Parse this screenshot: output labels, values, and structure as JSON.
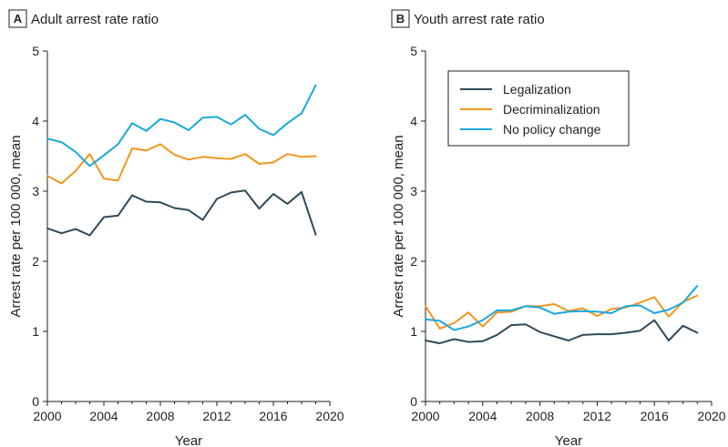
{
  "chart_data": [
    {
      "type": "line",
      "panel": "A",
      "title": "Adult arrest rate ratio",
      "xlabel": "Year",
      "ylabel": "Arrest rate per 100 000, mean",
      "xlim": [
        2000,
        2020
      ],
      "ylim": [
        0,
        5
      ],
      "xticks": [
        2000,
        2004,
        2008,
        2012,
        2016,
        2020
      ],
      "yticks": [
        0,
        1,
        2,
        3,
        4,
        5
      ],
      "x": [
        2000,
        2001,
        2002,
        2003,
        2004,
        2005,
        2006,
        2007,
        2008,
        2009,
        2010,
        2011,
        2012,
        2013,
        2014,
        2015,
        2016,
        2017,
        2018,
        2019
      ],
      "series": [
        {
          "name": "Legalization",
          "color": "#2e4a5b",
          "values": [
            2.47,
            2.4,
            2.46,
            2.37,
            2.63,
            2.65,
            2.94,
            2.85,
            2.84,
            2.76,
            2.73,
            2.59,
            2.89,
            2.98,
            3.01,
            2.75,
            2.96,
            2.82,
            2.99,
            2.38
          ]
        },
        {
          "name": "Decriminalization",
          "color": "#f0961e",
          "values": [
            3.22,
            3.11,
            3.29,
            3.53,
            3.18,
            3.15,
            3.61,
            3.58,
            3.67,
            3.52,
            3.45,
            3.49,
            3.47,
            3.46,
            3.53,
            3.39,
            3.41,
            3.53,
            3.49,
            3.5
          ]
        },
        {
          "name": "No policy change",
          "color": "#1aa8e0",
          "values": [
            3.75,
            3.7,
            3.56,
            3.36,
            3.51,
            3.67,
            3.97,
            3.86,
            4.03,
            3.98,
            3.87,
            4.05,
            4.06,
            3.95,
            4.09,
            3.89,
            3.8,
            3.97,
            4.11,
            4.51
          ]
        }
      ],
      "grid": false,
      "legend": null
    },
    {
      "type": "line",
      "panel": "B",
      "title": "Youth arrest rate ratio",
      "xlabel": "Year",
      "ylabel": "Arrest rate per 100 000, mean",
      "xlim": [
        2000,
        2020
      ],
      "ylim": [
        0,
        5
      ],
      "xticks": [
        2000,
        2004,
        2008,
        2012,
        2016,
        2020
      ],
      "yticks": [
        0,
        1,
        2,
        3,
        4,
        5
      ],
      "x": [
        2000,
        2001,
        2002,
        2003,
        2004,
        2005,
        2006,
        2007,
        2008,
        2009,
        2010,
        2011,
        2012,
        2013,
        2014,
        2015,
        2016,
        2017,
        2018,
        2019
      ],
      "series": [
        {
          "name": "Legalization",
          "color": "#2e4a5b",
          "values": [
            0.87,
            0.83,
            0.89,
            0.85,
            0.86,
            0.95,
            1.09,
            1.1,
            0.99,
            0.93,
            0.87,
            0.95,
            0.96,
            0.96,
            0.98,
            1.01,
            1.16,
            0.87,
            1.08,
            0.98
          ]
        },
        {
          "name": "Decriminalization",
          "color": "#f0961e",
          "values": [
            1.36,
            1.04,
            1.12,
            1.27,
            1.07,
            1.27,
            1.28,
            1.36,
            1.36,
            1.39,
            1.29,
            1.33,
            1.22,
            1.32,
            1.34,
            1.41,
            1.49,
            1.21,
            1.42,
            1.51
          ]
        },
        {
          "name": "No policy change",
          "color": "#1aa8e0",
          "values": [
            1.17,
            1.15,
            1.02,
            1.07,
            1.16,
            1.3,
            1.3,
            1.36,
            1.34,
            1.25,
            1.28,
            1.29,
            1.28,
            1.26,
            1.36,
            1.37,
            1.26,
            1.31,
            1.41,
            1.65
          ]
        }
      ],
      "grid": false,
      "legend": "top-right"
    }
  ]
}
